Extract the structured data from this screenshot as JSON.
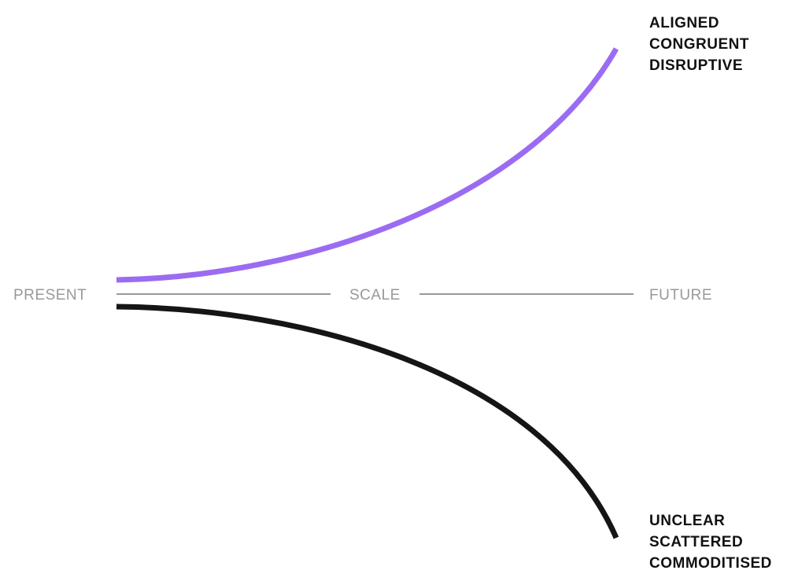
{
  "axis": {
    "left_label": "PRESENT",
    "center_label": "SCALE",
    "right_label": "FUTURE",
    "line_color": "#999999"
  },
  "upper_path": {
    "color": "#9b6cf2",
    "labels": [
      "ALIGNED",
      "CONGRUENT",
      "DISRUPTIVE"
    ]
  },
  "lower_path": {
    "color": "#151515",
    "labels": [
      "UNCLEAR",
      "SCATTERED",
      "COMMODITISED"
    ]
  }
}
